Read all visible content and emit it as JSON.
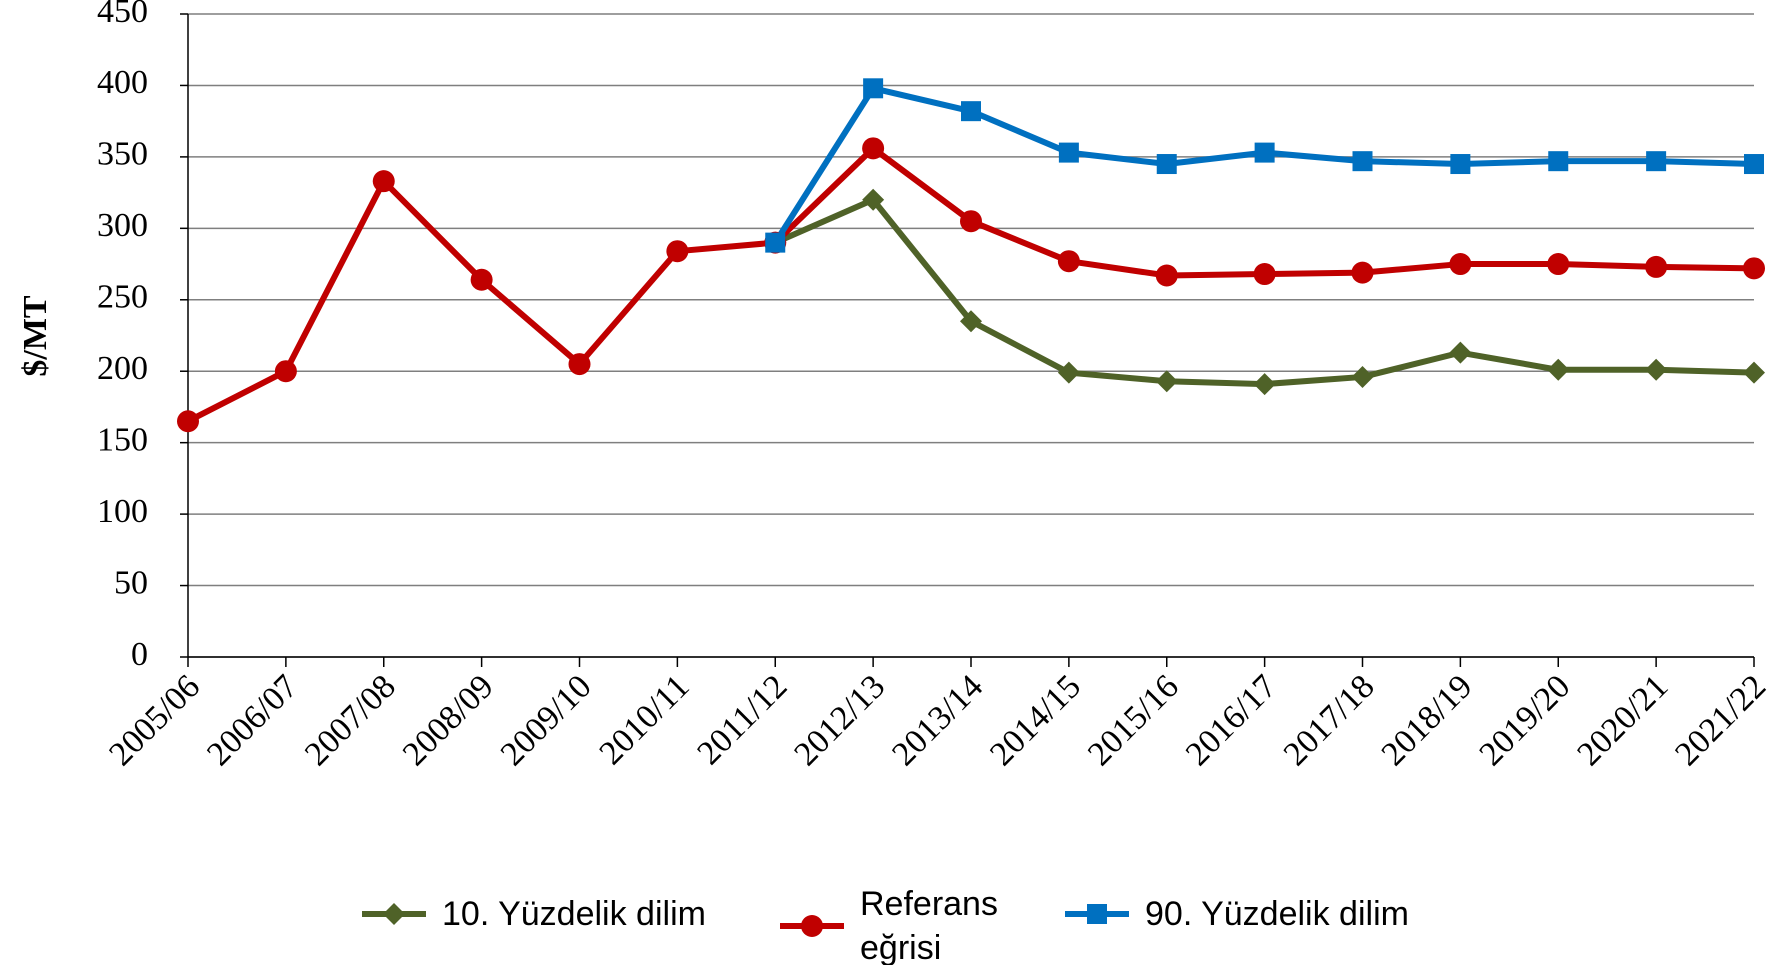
{
  "chart_data": {
    "type": "line",
    "y_label": "$/MT",
    "categories": [
      "2005/06",
      "2006/07",
      "2007/08",
      "2008/09",
      "2009/10",
      "2010/11",
      "2011/12",
      "2012/13",
      "2013/14",
      "2014/15",
      "2015/16",
      "2016/17",
      "2017/18",
      "2018/19",
      "2019/20",
      "2020/21",
      "2021/22"
    ],
    "series": [
      {
        "name": "10. Yüzdelik dilim",
        "color": "#4f6228",
        "marker": "diamond",
        "values": [
          null,
          null,
          null,
          null,
          null,
          null,
          290,
          320,
          235,
          199,
          193,
          191,
          196,
          213,
          201,
          201,
          199
        ]
      },
      {
        "name": "Referans eğrisi",
        "color": "#c00000",
        "marker": "circle",
        "values": [
          165,
          200,
          333,
          264,
          205,
          284,
          290,
          356,
          305,
          277,
          267,
          268,
          269,
          275,
          275,
          273,
          272
        ]
      },
      {
        "name": "90. Yüzdelik dilim",
        "color": "#0070c0",
        "marker": "square",
        "values": [
          null,
          null,
          null,
          null,
          null,
          null,
          290,
          398,
          382,
          353,
          345,
          353,
          347,
          345,
          347,
          347,
          345
        ]
      }
    ],
    "ylim": [
      0,
      450
    ],
    "yticks": [
      0,
      50,
      100,
      150,
      200,
      250,
      300,
      350,
      400,
      450
    ],
    "grid": true,
    "legend": "bottom"
  }
}
